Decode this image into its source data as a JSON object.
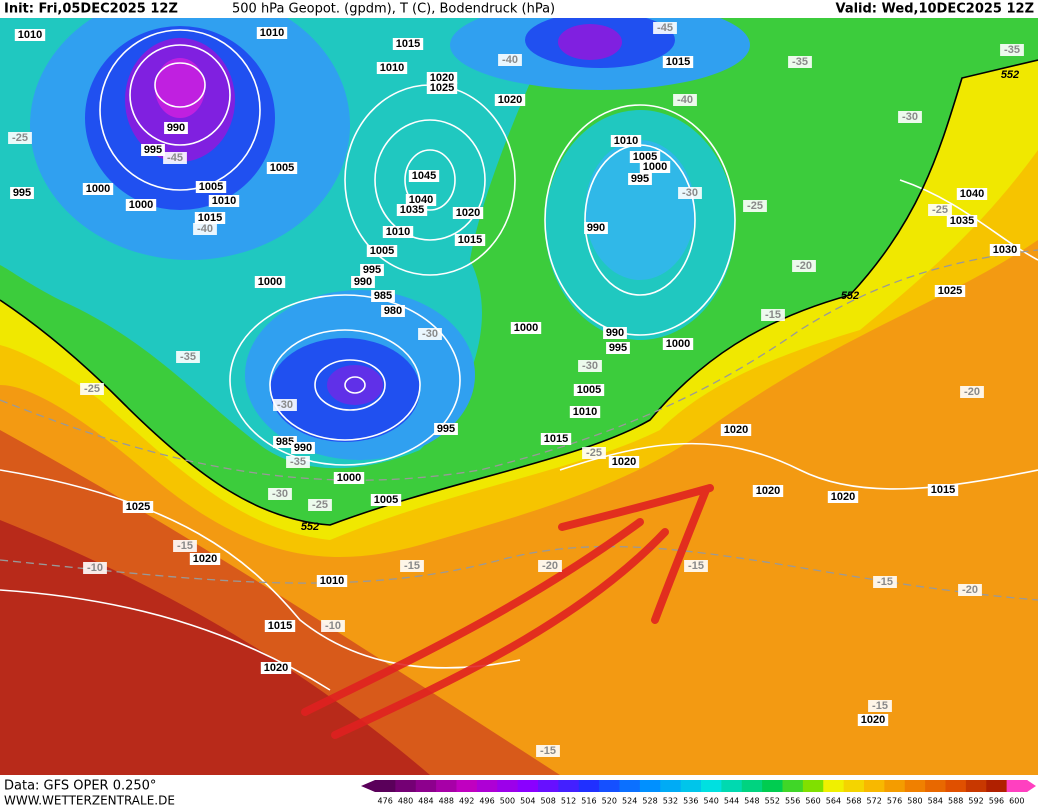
{
  "header": {
    "init": "Init: Fri,05DEC2025 12Z",
    "title": "500 hPa Geopot. (gpdm), T (C), Bodendruck (hPa)",
    "valid": "Valid: Wed,10DEC2025 12Z"
  },
  "map": {
    "isobar_labels": [
      "1010",
      "1010",
      "1015",
      "1010",
      "1020",
      "1025",
      "1020",
      "1015",
      "990",
      "995",
      "1005",
      "995",
      "1000",
      "1000",
      "1005",
      "1010",
      "1015",
      "1045",
      "1040",
      "1035",
      "1020",
      "1010",
      "1015",
      "1005",
      "995",
      "990",
      "985",
      "980",
      "1000",
      "1010",
      "1005",
      "1000",
      "995",
      "990",
      "1040",
      "1035",
      "1030",
      "1025",
      "1000",
      "990",
      "995",
      "1000",
      "1005",
      "1010",
      "995",
      "985",
      "990",
      "1015",
      "1020",
      "1000",
      "1005",
      "1025",
      "1020",
      "1010",
      "1015",
      "1020",
      "1020",
      "1020",
      "1020",
      "1015",
      "1020"
    ],
    "temperature_labels": [
      "-35",
      "-35",
      "-40",
      "-40",
      "-45",
      "-25",
      "-45",
      "-40",
      "-30",
      "-25",
      "-25",
      "-30",
      "-20",
      "-35",
      "-30",
      "-30",
      "-35",
      "-25",
      "-15",
      "-20",
      "-30",
      "-25",
      "-30",
      "-25",
      "-15",
      "-10",
      "-15",
      "-10",
      "-20",
      "-15",
      "-15",
      "-20",
      "-15",
      "-15"
    ],
    "geopotential_labels": [
      "552",
      "552",
      "552"
    ]
  },
  "legend": {
    "levels": [
      476,
      480,
      484,
      488,
      492,
      496,
      500,
      504,
      508,
      512,
      516,
      520,
      524,
      528,
      532,
      536,
      540,
      544,
      548,
      552,
      556,
      560,
      564,
      568,
      572,
      576,
      580,
      584,
      588,
      592,
      596,
      600
    ]
  },
  "footer": {
    "source": "Data: GFS OPER 0.250°",
    "website": "WWW.WETTERZENTRALE.DE"
  }
}
